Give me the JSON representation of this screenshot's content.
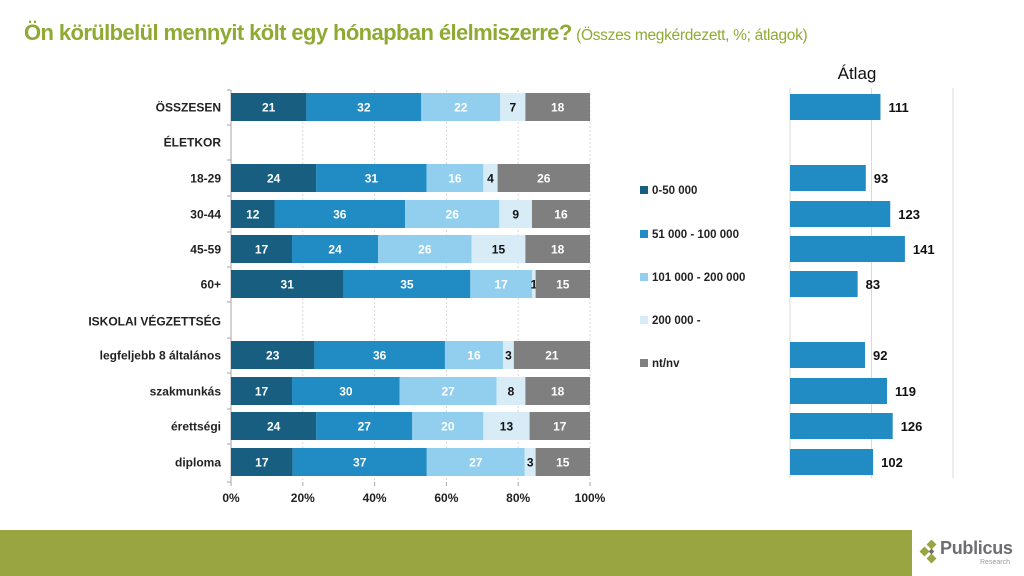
{
  "title": {
    "main": "Ön körülbelül mennyit költ egy hónapban élelmiszerre?",
    "sub": "(Összes megkérdezett, %; átlagok)"
  },
  "chart_data": [
    {
      "type": "bar",
      "orientation": "horizontal",
      "stacked": "percent",
      "title": "",
      "categories": [
        "ÖSSZESEN",
        "ÉLETKOR",
        "18-29",
        "30-44",
        "45-59",
        "60+",
        "ISKOLAI VÉGZETTSÉG",
        "legfeljebb 8 általános",
        "szakmunkás",
        "érettségi",
        "diploma"
      ],
      "category_is_header": [
        false,
        true,
        false,
        false,
        false,
        false,
        true,
        false,
        false,
        false,
        false
      ],
      "series": [
        {
          "name": "0-50 000",
          "color": "#175e80",
          "label_color": "#ffffff",
          "values": [
            21,
            null,
            24,
            12,
            17,
            31,
            null,
            23,
            17,
            24,
            17
          ]
        },
        {
          "name": "51 000 - 100 000",
          "color": "#218bc4",
          "label_color": "#ffffff",
          "values": [
            32,
            null,
            31,
            36,
            24,
            35,
            null,
            36,
            30,
            27,
            37
          ]
        },
        {
          "name": "101 000 - 200 000",
          "color": "#92cfee",
          "label_color": "#ffffff",
          "values": [
            22,
            null,
            16,
            26,
            26,
            17,
            null,
            16,
            27,
            20,
            27
          ]
        },
        {
          "name": "200 000 -",
          "color": "#d8ecf8",
          "label_color": "#111111",
          "values": [
            7,
            null,
            4,
            9,
            15,
            1,
            null,
            3,
            8,
            13,
            3
          ]
        },
        {
          "name": "nt/nv",
          "color": "#7f7f7f",
          "label_color": "#ffffff",
          "values": [
            18,
            null,
            26,
            16,
            18,
            15,
            null,
            21,
            18,
            17,
            15
          ]
        }
      ],
      "xlim": [
        0,
        100
      ],
      "xticks": [
        "0%",
        "20%",
        "40%",
        "60%",
        "80%",
        "100%"
      ],
      "grid": true,
      "legend": {
        "position": "right"
      }
    },
    {
      "type": "bar",
      "orientation": "horizontal",
      "title": "Átlag",
      "categories": [
        "ÖSSZESEN",
        "ÉLETKOR",
        "18-29",
        "30-44",
        "45-59",
        "60+",
        "ISKOLAI VÉGZETTSÉG",
        "legfeljebb 8 általános",
        "szakmunkás",
        "érettségi",
        "diploma"
      ],
      "values": [
        111,
        null,
        93,
        123,
        141,
        83,
        null,
        92,
        119,
        126,
        102
      ],
      "color": "#218bc4",
      "xlim": [
        0,
        200
      ],
      "grid": true
    }
  ],
  "logo": {
    "name": "Publicus",
    "sub": "Research"
  }
}
